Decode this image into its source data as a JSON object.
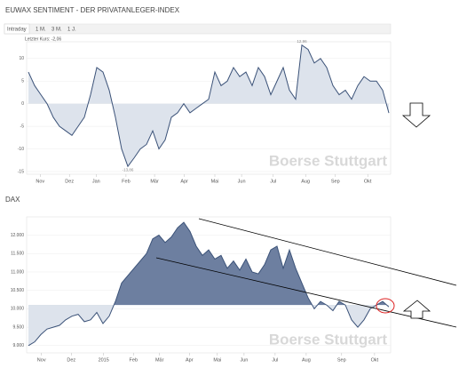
{
  "tabs": [
    "Intraday",
    "1 M.",
    "3 M.",
    "1 J."
  ],
  "last_price": "Letzter Kurs: -2,06",
  "chart_data": [
    {
      "type": "area",
      "title": "EUWAX SENTIMENT - DER PRIVATANLEGER-INDEX",
      "watermark": "Boerse Stuttgart",
      "x": [
        0,
        1,
        2,
        3,
        4,
        5,
        6,
        7,
        8,
        9,
        10,
        11,
        12,
        13,
        14,
        15,
        16,
        17,
        18,
        19,
        20,
        21,
        22,
        23,
        24,
        25,
        26,
        27,
        28,
        29,
        30,
        31,
        32,
        33,
        34,
        35,
        36,
        37,
        38,
        39,
        40,
        41,
        42,
        43,
        44,
        45,
        46,
        47,
        48,
        49,
        50,
        51,
        52,
        53,
        54,
        55,
        56,
        57,
        58
      ],
      "series": [
        {
          "name": "EUWAX Sentiment",
          "color": "#3b5278",
          "values": [
            7,
            4,
            2,
            0,
            -3,
            -5,
            -6,
            -7,
            -5,
            -3,
            2,
            8,
            7,
            3,
            -3,
            -10,
            -13.86,
            -12,
            -10,
            -9,
            -6,
            -10,
            -8,
            -3,
            -2,
            0,
            -2,
            -1,
            0,
            1,
            7,
            4,
            5,
            8,
            6,
            7,
            4,
            8,
            6,
            2,
            5,
            8,
            3,
            1,
            12.96,
            12,
            9,
            10,
            8,
            4,
            2,
            3,
            1,
            4,
            6,
            5,
            5,
            3,
            -2.06
          ]
        }
      ],
      "baseline": 0,
      "fill_above": "#dde3ec",
      "fill_below": "#dde3ec",
      "annotations": [
        {
          "x": 44,
          "y": 12.96,
          "label": "12,96"
        },
        {
          "x": 16,
          "y": -13.86,
          "label": "-13,86"
        }
      ],
      "xlim": [
        0,
        58
      ],
      "xticks": [
        {
          "value": 1.9,
          "label": "Nov"
        },
        {
          "value": 6.6,
          "label": "Dez"
        },
        {
          "value": 10.9,
          "label": "Jan"
        },
        {
          "value": 15.7,
          "label": "Feb"
        },
        {
          "value": 20.3,
          "label": "Mär"
        },
        {
          "value": 25.1,
          "label": "Apr"
        },
        {
          "value": 30,
          "label": "Mai"
        },
        {
          "value": 34.3,
          "label": "Jun"
        },
        {
          "value": 39.4,
          "label": "Jul"
        },
        {
          "value": 44.6,
          "label": "Aug"
        },
        {
          "value": 49.4,
          "label": "Sep"
        },
        {
          "value": 54.6,
          "label": "Okt"
        }
      ],
      "ylim": [
        -15,
        13.5
      ],
      "yticks": [
        10,
        5,
        0,
        -5,
        -10,
        -15
      ],
      "grid": true
    },
    {
      "type": "area",
      "title": "DAX",
      "watermark": "Boerse Stuttgart",
      "x": [
        0,
        1,
        2,
        3,
        4,
        5,
        6,
        7,
        8,
        9,
        10,
        11,
        12,
        13,
        14,
        15,
        16,
        17,
        18,
        19,
        20,
        21,
        22,
        23,
        24,
        25,
        26,
        27,
        28,
        29,
        30,
        31,
        32,
        33,
        34,
        35,
        36,
        37,
        38,
        39,
        40,
        41,
        42,
        43,
        44,
        45,
        46,
        47,
        48,
        49,
        50,
        51,
        52,
        53,
        54,
        55,
        56,
        57,
        58
      ],
      "series": [
        {
          "name": "DAX",
          "color": "#3b5278",
          "values": [
            9000,
            9100,
            9300,
            9450,
            9500,
            9550,
            9700,
            9800,
            9850,
            9650,
            9700,
            9900,
            9600,
            9800,
            10200,
            10700,
            10900,
            11100,
            11300,
            11500,
            11900,
            12000,
            11800,
            11950,
            12200,
            12350,
            12100,
            11700,
            11450,
            11600,
            11350,
            11450,
            11100,
            11300,
            11050,
            11350,
            11000,
            10950,
            11200,
            11600,
            11700,
            11100,
            11600,
            11100,
            10700,
            10300,
            10000,
            10200,
            10100,
            9950,
            10200,
            10100,
            9700,
            9500,
            9700,
            10000,
            10100,
            10200,
            10050
          ]
        }
      ],
      "baseline": 10100,
      "fill_above": "#6d7fa0",
      "fill_below": "#dde3ec",
      "xlim": [
        0,
        58
      ],
      "xticks": [
        {
          "value": 2.1,
          "label": "Nov"
        },
        {
          "value": 6.9,
          "label": "Dez"
        },
        {
          "value": 12.1,
          "label": "2015"
        },
        {
          "value": 16.9,
          "label": "Feb"
        },
        {
          "value": 21.1,
          "label": "Mär"
        },
        {
          "value": 25.9,
          "label": "Apr"
        },
        {
          "value": 30.4,
          "label": "Mai"
        },
        {
          "value": 34.7,
          "label": "Jun"
        },
        {
          "value": 39.7,
          "label": "Jul"
        },
        {
          "value": 44.7,
          "label": "Aug"
        },
        {
          "value": 50.4,
          "label": "Sep"
        },
        {
          "value": 55.7,
          "label": "Okt"
        }
      ],
      "ylim": [
        8850,
        12400
      ],
      "yticks": [
        {
          "value": 12000,
          "label": "12.000"
        },
        {
          "value": 11500,
          "label": "11.500"
        },
        {
          "value": 11000,
          "label": "11.000"
        },
        {
          "value": 10500,
          "label": "10.500"
        },
        {
          "value": 10000,
          "label": "10.000"
        },
        {
          "value": 9500,
          "label": "9.500"
        },
        {
          "value": 9000,
          "label": "9.000"
        }
      ],
      "grid": true
    }
  ]
}
